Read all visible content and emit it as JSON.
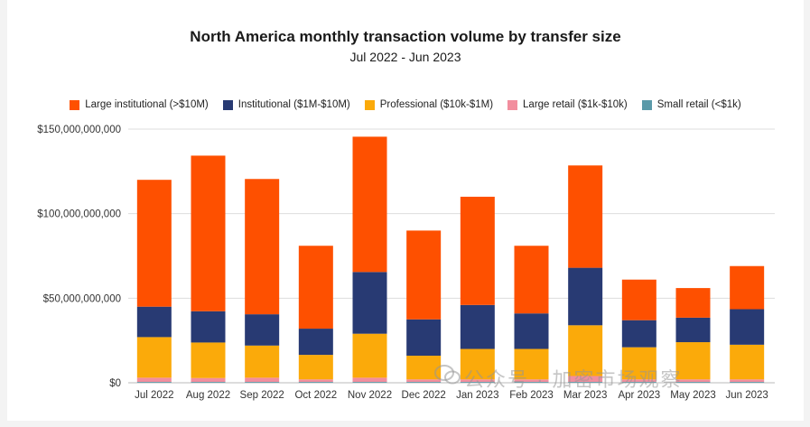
{
  "chart_data": {
    "type": "bar",
    "stacked": true,
    "title": "North America monthly transaction volume by transfer size",
    "subtitle": "Jul 2022 - Jun 2023",
    "xlabel": "",
    "ylabel": "",
    "ylim": [
      0,
      150000000000
    ],
    "yticks": [
      {
        "value": 0,
        "label": "$0"
      },
      {
        "value": 50000000000,
        "label": "$50,000,000,000"
      },
      {
        "value": 100000000000,
        "label": "$100,000,000,000"
      },
      {
        "value": 150000000000,
        "label": "$150,000,000,000"
      }
    ],
    "categories": [
      "Jul 2022",
      "Aug 2022",
      "Sep 2022",
      "Oct 2022",
      "Nov 2022",
      "Dec 2022",
      "Jan 2023",
      "Feb 2023",
      "Mar 2023",
      "Apr 2023",
      "May 2023",
      "Jun 2023"
    ],
    "legend_position": "top-center",
    "series": [
      {
        "name": "Small retail (<$1k)",
        "color": "#5b9aa9",
        "values": [
          500000000.0,
          500000000.0,
          500000000.0,
          500000000.0,
          500000000.0,
          500000000.0,
          500000000.0,
          500000000.0,
          500000000.0,
          500000000.0,
          500000000.0,
          500000000.0
        ]
      },
      {
        "name": "Large retail ($1k-$10k)",
        "color": "#f28e9e",
        "values": [
          2500000000.0,
          2300000000.0,
          2500000000.0,
          1500000000.0,
          2500000000.0,
          1500000000.0,
          1500000000.0,
          1500000000.0,
          3500000000.0,
          1500000000.0,
          1500000000.0,
          1500000000.0
        ]
      },
      {
        "name": "Professional ($10k-$1M)",
        "color": "#fbaa0a",
        "values": [
          24000000000.0,
          21000000000.0,
          19000000000.0,
          14500000000.0,
          26000000000.0,
          14000000000.0,
          18000000000.0,
          18000000000.0,
          30000000000.0,
          19000000000.0,
          22000000000.0,
          20500000000.0
        ]
      },
      {
        "name": "Institutional ($1M-$10M)",
        "color": "#283a73",
        "values": [
          18000000000.0,
          18500000000.0,
          18500000000.0,
          15500000000.0,
          36500000000.0,
          21500000000.0,
          26000000000.0,
          21000000000.0,
          34000000000.0,
          16000000000.0,
          14500000000.0,
          21000000000.0
        ]
      },
      {
        "name": "Large institutional (>$10M)",
        "color": "#fe5000",
        "values": [
          75000000000.0,
          92000000000.0,
          80000000000.0,
          49000000000.0,
          80000000000.0,
          52500000000.0,
          64000000000.0,
          40000000000.0,
          60500000000.0,
          24000000000.0,
          17500000000.0,
          25500000000.0
        ]
      }
    ],
    "legend_order": [
      "Large institutional (>$10M)",
      "Institutional ($1M-$10M)",
      "Professional ($10k-$1M)",
      "Large retail ($1k-$10k)",
      "Small retail (<$1k)"
    ],
    "grid": true
  },
  "watermark": "公众号 · 加密市场观察"
}
